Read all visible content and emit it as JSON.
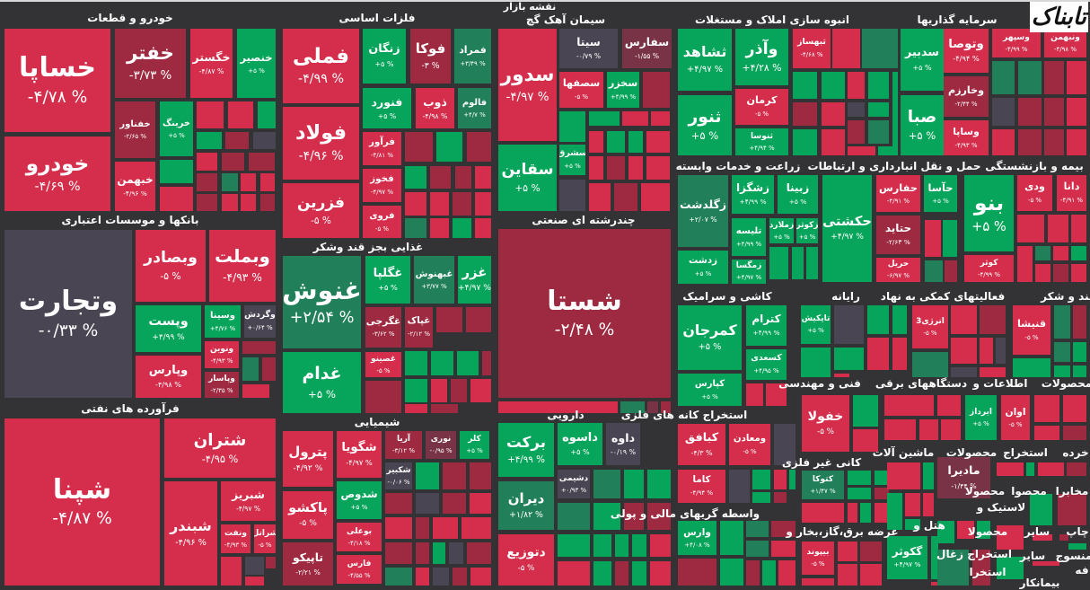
{
  "title": "نقشه بازار",
  "logo": "تابناک",
  "colors": {
    "R": "#d42e4c",
    "D": "#9d2a41",
    "M": "#783346",
    "G": "#07a55b",
    "E": "#21805a",
    "Y": "#4a4552",
    "bg": "#333335"
  },
  "sectors": [
    {
      "name": "خودرو و قطعات"
    },
    {
      "name": "فلزات اساسی"
    },
    {
      "name": "سیمان آهک گچ"
    },
    {
      "name": "انبوه سازی املاک و مستغلات"
    },
    {
      "name": "سرمایه گذاریها"
    },
    {
      "name": "زراعت و خدمات وابسته"
    },
    {
      "name": "حمل و نقل انبارداری و ارتباطات"
    },
    {
      "name": "بیمه و بازنشستگی"
    },
    {
      "name": "بانکها و موسسات اعتباری"
    },
    {
      "name": "غذایی بجز قند وشکر"
    },
    {
      "name": "چندرشته ای صنعتی"
    },
    {
      "name": "کاشی و سرامیک"
    },
    {
      "name": "رایانه"
    },
    {
      "name": "فعالیتهای کمکی به نهاد"
    },
    {
      "name": "قند و شکر"
    },
    {
      "name": "فنی و مهندسی"
    },
    {
      "name": "دستگاههای برقی"
    },
    {
      "name": "اطلاعات و"
    },
    {
      "name": "محصولات"
    },
    {
      "name": "فرآورده های نفتی"
    },
    {
      "name": "شیمیایی"
    },
    {
      "name": "دارویی"
    },
    {
      "name": "استخراج کانه های فلزی"
    },
    {
      "name": "کانی غیر فلزی"
    },
    {
      "name": "ماشین آلات"
    },
    {
      "name": "محصولات"
    },
    {
      "name": "استخراج"
    },
    {
      "name": "خرده"
    },
    {
      "name": "واسطه گریهای مالی و پولی"
    },
    {
      "name": "عرضه برق،گاز،بخار و"
    },
    {
      "name": "هتل و"
    },
    {
      "name": "لاستیک و"
    },
    {
      "name": "استخراج زغال"
    },
    {
      "name": "مخابرا"
    },
    {
      "name": "محصوا"
    },
    {
      "name": "محصولا"
    },
    {
      "name": "محصولا"
    },
    {
      "name": "سایر"
    },
    {
      "name": "چاپ"
    },
    {
      "name": "سایر"
    },
    {
      "name": "منسوج"
    },
    {
      "name": "استخرا"
    },
    {
      "name": "بیمانکار"
    },
    {
      "name": "فه"
    }
  ],
  "tiles": [
    {
      "symbol": "خساپا",
      "change": "-۴/۷۸ %",
      "tone": "R"
    },
    {
      "symbol": "خودرو",
      "change": "-۴/۶۹ %",
      "tone": "R"
    },
    {
      "symbol": "خفتر",
      "change": "-۳/۷۳ %",
      "tone": "D"
    },
    {
      "symbol": "خگستر",
      "change": "-۴/۸۷ %",
      "tone": "R"
    },
    {
      "symbol": "خنصیر",
      "change": "+۵ %",
      "tone": "G"
    },
    {
      "symbol": "خفناور",
      "change": "-۲/۶۵ %",
      "tone": "D"
    },
    {
      "symbol": "خرینگ",
      "change": "+۵ %",
      "tone": "G"
    },
    {
      "symbol": "خبهمن",
      "change": "-۴/۹۶ %",
      "tone": "R"
    },
    {
      "symbol": "فملی",
      "change": "-۴/۹۹ %",
      "tone": "R"
    },
    {
      "symbol": "فولاد",
      "change": "-۴/۹۶ %",
      "tone": "R"
    },
    {
      "symbol": "فزرین",
      "change": "-۵ %",
      "tone": "R"
    },
    {
      "symbol": "زنگان",
      "change": "+۵ %",
      "tone": "G"
    },
    {
      "symbol": "فوکا",
      "change": "-۳ %",
      "tone": "D"
    },
    {
      "symbol": "فمراد",
      "change": "+۳/۴۹ %",
      "tone": "E"
    },
    {
      "symbol": "فنورد",
      "change": "+۵ %",
      "tone": "G"
    },
    {
      "symbol": "ذوب",
      "change": "-۴/۹۸ %",
      "tone": "R"
    },
    {
      "symbol": "فالوم",
      "change": "+۴/۷ %",
      "tone": "E"
    },
    {
      "symbol": "فرآور",
      "change": "-۴/۸۱ %",
      "tone": "R"
    },
    {
      "symbol": "فخوز",
      "change": "-۴/۹۷ %",
      "tone": "R"
    },
    {
      "symbol": "فروی",
      "change": "-۵ %",
      "tone": "R"
    },
    {
      "symbol": "وتجارت",
      "change": "-۰/۳۳ %",
      "tone": "Y"
    },
    {
      "symbol": "وبصادر",
      "change": "-۵ %",
      "tone": "R"
    },
    {
      "symbol": "وبملت",
      "change": "-۴/۹۳ %",
      "tone": "R"
    },
    {
      "symbol": "وپست",
      "change": "+۴/۹۹ %",
      "tone": "G"
    },
    {
      "symbol": "وسینا",
      "change": "+۴/۷۶ %",
      "tone": "G"
    },
    {
      "symbol": "وگردش",
      "change": "+۰/۶۴ %",
      "tone": "Y"
    },
    {
      "symbol": "ونوین",
      "change": "-۴/۹۳ %",
      "tone": "R"
    },
    {
      "symbol": "وپاسار",
      "change": "-۲/۳۵ %",
      "tone": "D"
    },
    {
      "symbol": "وپارس",
      "change": "-۴/۹۸ %",
      "tone": "R"
    },
    {
      "symbol": "غنوش",
      "change": "+۲/۵۴ %",
      "tone": "E"
    },
    {
      "symbol": "غدام",
      "change": "+۵ %",
      "tone": "G"
    },
    {
      "symbol": "غگلپا",
      "change": "+۵ %",
      "tone": "G"
    },
    {
      "symbol": "غبهنوش",
      "change": "+۳/۷۷ %",
      "tone": "E"
    },
    {
      "symbol": "غزر",
      "change": "+۴/۹۷ %",
      "tone": "G"
    },
    {
      "symbol": "غگرجی",
      "change": "-۳/۶۲ %",
      "tone": "D"
    },
    {
      "symbol": "غپاک",
      "change": "-۲/۱۲ %",
      "tone": "D"
    },
    {
      "symbol": "غصینو",
      "change": "-۵ %",
      "tone": "R"
    },
    {
      "symbol": "شپنا",
      "change": "-۴/۸۷ %",
      "tone": "R"
    },
    {
      "symbol": "شتران",
      "change": "-۴/۹۵ %",
      "tone": "R"
    },
    {
      "symbol": "شبندر",
      "change": "-۴/۹۶ %",
      "tone": "R"
    },
    {
      "symbol": "شبریز",
      "change": "-۴/۹۷ %",
      "tone": "R"
    },
    {
      "symbol": "ونفت",
      "change": "-۴/۹۳ %",
      "tone": "R"
    },
    {
      "symbol": "شرانل",
      "change": "-۵ %",
      "tone": "R"
    },
    {
      "symbol": "پترول",
      "change": "-۴/۹۲ %",
      "tone": "R"
    },
    {
      "symbol": "پاکشو",
      "change": "-۵ %",
      "tone": "R"
    },
    {
      "symbol": "تاپیکو",
      "change": "-۲/۲۱ %",
      "tone": "D"
    },
    {
      "symbol": "شگویا",
      "change": "-۴/۹۷ %",
      "tone": "R"
    },
    {
      "symbol": "شدوص",
      "change": "+۵ %",
      "tone": "G"
    },
    {
      "symbol": "بوعلی",
      "change": "-۴/۱۸ %",
      "tone": "R"
    },
    {
      "symbol": "فارس",
      "change": "-۴/۵۵ %",
      "tone": "R"
    },
    {
      "symbol": "آریا",
      "change": "-۳/۱۲ %",
      "tone": "D"
    },
    {
      "symbol": "نوری",
      "change": "-۰/۹۵ %",
      "tone": "M"
    },
    {
      "symbol": "کلر",
      "change": "+۵ %",
      "tone": "G"
    },
    {
      "symbol": "شکبیر",
      "change": "-۰/۰۶ %",
      "tone": "Y"
    },
    {
      "symbol": "سدور",
      "change": "-۴/۹۷ %",
      "tone": "R"
    },
    {
      "symbol": "سقاین",
      "change": "+۵ %",
      "tone": "G"
    },
    {
      "symbol": "سیتا",
      "change": "-۰/۷۹ %",
      "tone": "Y"
    },
    {
      "symbol": "سفارس",
      "change": "-۱/۵۵ %",
      "tone": "M"
    },
    {
      "symbol": "سصفها",
      "change": "-۵ %",
      "tone": "R"
    },
    {
      "symbol": "سخزر",
      "change": "+۴/۹۹ %",
      "tone": "G"
    },
    {
      "symbol": "سشرق",
      "change": "+۵ %",
      "tone": "G"
    },
    {
      "symbol": "ثشاهد",
      "change": "+۴/۹۷ %",
      "tone": "G"
    },
    {
      "symbol": "ثنور",
      "change": "+۵ %",
      "tone": "G"
    },
    {
      "symbol": "وآذر",
      "change": "+۴/۲۸ %",
      "tone": "G"
    },
    {
      "symbol": "کرمان",
      "change": "-۵ %",
      "tone": "R"
    },
    {
      "symbol": "ثنوسا",
      "change": "+۴/۹۴ %",
      "tone": "G"
    },
    {
      "symbol": "ثبهساز",
      "change": "-۴/۶۸ %",
      "tone": "R"
    },
    {
      "symbol": "سدبیر",
      "change": "+۵ %",
      "tone": "G"
    },
    {
      "symbol": "صبا",
      "change": "+۵ %",
      "tone": "G"
    },
    {
      "symbol": "وتوصا",
      "change": "-۴/۹۴ %",
      "tone": "R"
    },
    {
      "symbol": "وخارزم",
      "change": "-۲/۴۴ %",
      "tone": "D"
    },
    {
      "symbol": "وساپا",
      "change": "-۴/۹۳ %",
      "tone": "R"
    },
    {
      "symbol": "وسپهر",
      "change": "-۴/۹۹ %",
      "tone": "R"
    },
    {
      "symbol": "ونبهمن",
      "change": "-۴/۹۸ %",
      "tone": "R"
    },
    {
      "symbol": "زگلدشت",
      "change": "+۲/۰۷ %",
      "tone": "E"
    },
    {
      "symbol": "زدشت",
      "change": "+۵ %",
      "tone": "G"
    },
    {
      "symbol": "زشگزا",
      "change": "+۴/۹۹ %",
      "tone": "G"
    },
    {
      "symbol": "زبینا",
      "change": "+۵ %",
      "tone": "G"
    },
    {
      "symbol": "تلیسه",
      "change": "+۴/۹۹ %",
      "tone": "G"
    },
    {
      "symbol": "زملارد",
      "change": "+۵ %",
      "tone": "G"
    },
    {
      "symbol": "زکوثر",
      "change": "+۵ %",
      "tone": "G"
    },
    {
      "symbol": "زمگسا",
      "change": "+۴/۹۷ %",
      "tone": "G"
    },
    {
      "symbol": "حکشتی",
      "change": "+۴/۹۷ %",
      "tone": "G"
    },
    {
      "symbol": "حفارس",
      "change": "-۴/۹۱ %",
      "tone": "R"
    },
    {
      "symbol": "حآسا",
      "change": "+۵ %",
      "tone": "G"
    },
    {
      "symbol": "حتاید",
      "change": "-۲/۶۳ %",
      "tone": "D"
    },
    {
      "symbol": "حریل",
      "change": "-۶/۹۷ %",
      "tone": "R"
    },
    {
      "symbol": "بنو",
      "change": "+۵ %",
      "tone": "G"
    },
    {
      "symbol": "کوثر",
      "change": "-۴/۹۹ %",
      "tone": "R"
    },
    {
      "symbol": "ودی",
      "change": "-۵ %",
      "tone": "R"
    },
    {
      "symbol": "دانا",
      "change": "-۴/۹۱ %",
      "tone": "R"
    },
    {
      "symbol": "شستا",
      "change": "-۲/۴۸ %",
      "tone": "D"
    },
    {
      "symbol": "کمرجان",
      "change": "+۵ %",
      "tone": "G"
    },
    {
      "symbol": "کترام",
      "change": "+۴/۹۹ %",
      "tone": "G"
    },
    {
      "symbol": "کسعدی",
      "change": "+۴/۹۵ %",
      "tone": "G"
    },
    {
      "symbol": "کپارس",
      "change": "+۵ %",
      "tone": "G"
    },
    {
      "symbol": "تاپکیش",
      "change": "+۵ %",
      "tone": "G"
    },
    {
      "symbol": "انرژی3",
      "change": "-۵ %",
      "tone": "R"
    },
    {
      "symbol": "قنیشا",
      "change": "-۵ %",
      "tone": "R"
    },
    {
      "symbol": "خفولا",
      "change": "-۵ %",
      "tone": "R"
    },
    {
      "symbol": "ایرداز",
      "change": "+۵ %",
      "tone": "G"
    },
    {
      "symbol": "اوان",
      "change": "-۵ %",
      "tone": "R"
    },
    {
      "symbol": "برکت",
      "change": "+۴/۹۹ %",
      "tone": "G"
    },
    {
      "symbol": "داسوه",
      "change": "+۵ %",
      "tone": "G"
    },
    {
      "symbol": "داوه",
      "change": "-۰/۱۹ %",
      "tone": "Y"
    },
    {
      "symbol": "دشیمی",
      "change": "+۰/۹۳ %",
      "tone": "Y"
    },
    {
      "symbol": "دیران",
      "change": "+۱/۸۲ %",
      "tone": "E"
    },
    {
      "symbol": "دتوزیع",
      "change": "-۵ %",
      "tone": "R"
    },
    {
      "symbol": "کبافق",
      "change": "-۴/۳ %",
      "tone": "R"
    },
    {
      "symbol": "ومعادن",
      "change": "-۵ %",
      "tone": "R"
    },
    {
      "symbol": "کاما",
      "change": "-۴/۹۴ %",
      "tone": "R"
    },
    {
      "symbol": "وارس",
      "change": "+۴/۰۸ %",
      "tone": "G"
    },
    {
      "symbol": "کتوکا",
      "change": "+۱/۴۷ %",
      "tone": "E"
    },
    {
      "symbol": "بیپوند",
      "change": "-۵ %",
      "tone": "R"
    },
    {
      "symbol": "گکوثر",
      "change": "+۴/۹۷ %",
      "tone": "G"
    },
    {
      "symbol": "مادیرا",
      "change": "-۱/۴۴ %",
      "tone": "M"
    }
  ]
}
